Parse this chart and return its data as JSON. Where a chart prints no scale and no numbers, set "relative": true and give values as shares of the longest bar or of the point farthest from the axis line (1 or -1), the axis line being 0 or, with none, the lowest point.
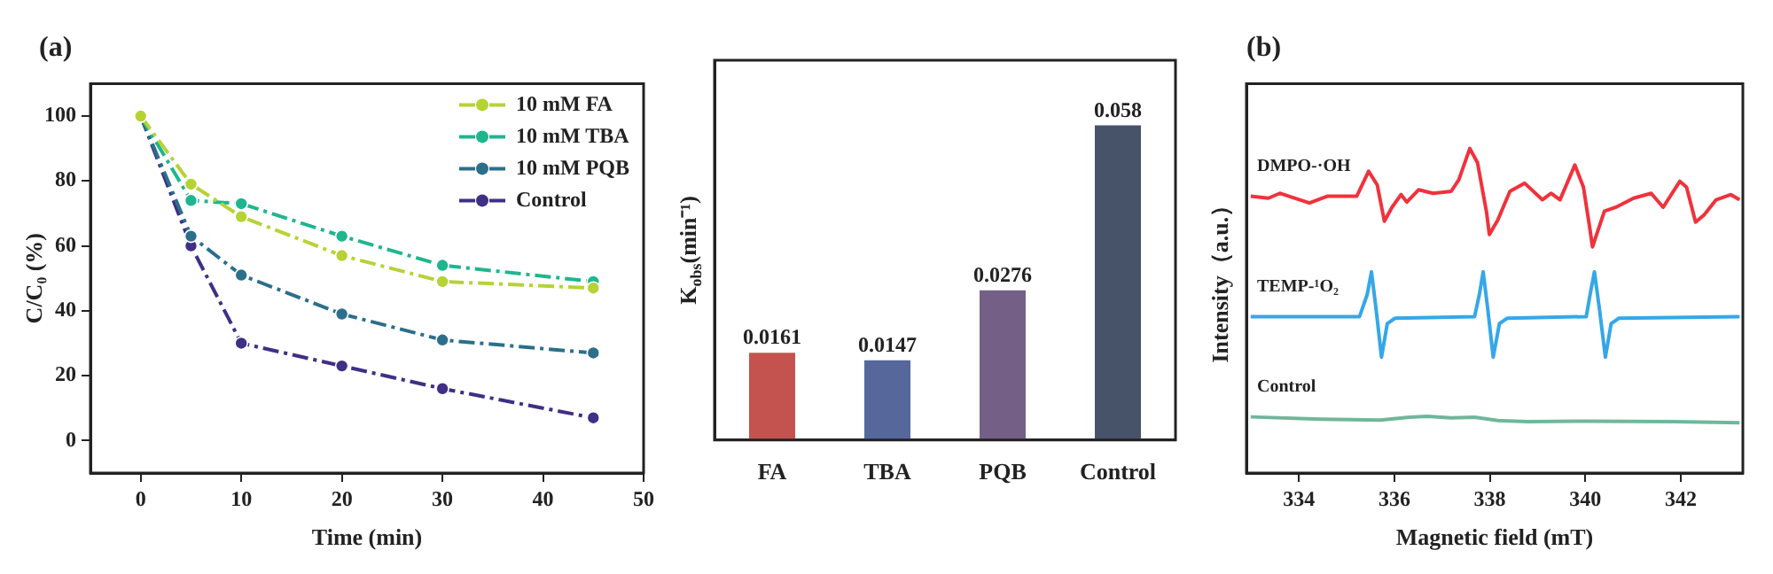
{
  "chart_data": [
    {
      "type": "line",
      "title": "(a)",
      "xlabel": "Time (min)",
      "ylabel": "C/C₀ (%)",
      "x": [
        0,
        5,
        10,
        20,
        30,
        45
      ],
      "series": [
        {
          "name": "10 mM FA",
          "color": "#b5d334",
          "values": [
            100,
            79,
            69,
            57,
            49,
            47
          ]
        },
        {
          "name": "10 mM TBA",
          "color": "#1fb58f",
          "values": [
            100,
            74,
            73,
            63,
            54,
            49
          ]
        },
        {
          "name": "10 mM PQB",
          "color": "#2b6f8a",
          "values": [
            100,
            63,
            51,
            39,
            31,
            27
          ]
        },
        {
          "name": "Control",
          "color": "#3f2f85",
          "values": [
            100,
            60,
            30,
            23,
            16,
            7
          ]
        }
      ],
      "xlim": [
        -5,
        50
      ],
      "ylim": [
        -10,
        110
      ],
      "xticks": [
        0,
        10,
        20,
        30,
        40,
        50
      ],
      "yticks": [
        0,
        20,
        40,
        60,
        80,
        100
      ],
      "legend": "top right",
      "marker": "circle",
      "line_style": "dashed"
    },
    {
      "type": "bar",
      "ylabel": "K$_{obs}$(min⁻¹)",
      "categories": [
        "FA",
        "TBA",
        "PQB",
        "Control"
      ],
      "values": [
        0.0161,
        0.0147,
        0.0276,
        0.058
      ],
      "colors": [
        "#c4534f",
        "#56679c",
        "#745f87",
        "#475368"
      ],
      "data_labels": true
    },
    {
      "type": "line",
      "title": "(b)",
      "xlabel": "Magnetic field (mT)",
      "ylabel": "Intensity（a.u.）",
      "relative": true,
      "series": [
        {
          "name": "DMPO-·OH",
          "color": "#f0323c",
          "x": [
            332.99,
            333.36,
            333.6,
            333.85,
            334.22,
            334.59,
            335.21,
            335.46,
            335.64,
            335.79,
            335.95,
            336.14,
            336.26,
            336.51,
            336.81,
            337.19,
            337.35,
            337.58,
            337.74,
            337.93,
            337.99,
            338.17,
            338.42,
            338.73,
            339.1,
            339.28,
            339.47,
            339.78,
            339.96,
            340.09,
            340.15,
            340.4,
            340.64,
            341.01,
            341.38,
            341.63,
            341.98,
            342.12,
            342.31,
            342.49,
            342.74,
            343.05,
            343.23
          ],
          "values": [
            0.853,
            0.847,
            0.862,
            0.85,
            0.832,
            0.853,
            0.853,
            0.93,
            0.888,
            0.776,
            0.819,
            0.858,
            0.835,
            0.873,
            0.862,
            0.868,
            0.904,
            1,
            0.957,
            0.804,
            0.735,
            0.781,
            0.868,
            0.893,
            0.842,
            0.862,
            0.842,
            0.949,
            0.881,
            0.758,
            0.697,
            0.807,
            0.819,
            0.847,
            0.862,
            0.819,
            0.899,
            0.881,
            0.773,
            0.796,
            0.842,
            0.858,
            0.842
          ]
        },
        {
          "name": "TEMP-¹O₂",
          "color": "#35a7e8",
          "x": [
            332.99,
            335.27,
            335.43,
            335.52,
            335.62,
            335.73,
            335.85,
            336.01,
            337.68,
            337.78,
            337.86,
            337.96,
            338.07,
            338.2,
            338.36,
            340.02,
            340.1,
            340.19,
            340.3,
            340.42,
            340.54,
            340.7,
            343.23
          ],
          "values": [
            0.482,
            0.482,
            0.55,
            0.62,
            0.5,
            0.357,
            0.46,
            0.477,
            0.482,
            0.55,
            0.62,
            0.5,
            0.357,
            0.46,
            0.477,
            0.482,
            0.55,
            0.62,
            0.5,
            0.357,
            0.46,
            0.477,
            0.482
          ]
        },
        {
          "name": "Control",
          "color": "#6fb79a",
          "x": [
            332.99,
            334.47,
            335.7,
            336.32,
            336.69,
            337.19,
            337.68,
            338.17,
            338.79,
            340.02,
            341.88,
            343.23
          ],
          "values": [
            0.173,
            0.166,
            0.163,
            0.172,
            0.175,
            0.17,
            0.172,
            0.162,
            0.158,
            0.16,
            0.158,
            0.155
          ]
        }
      ],
      "xlim": [
        332.9,
        343.3
      ],
      "xticks": [
        334,
        336,
        338,
        340,
        342
      ]
    }
  ]
}
